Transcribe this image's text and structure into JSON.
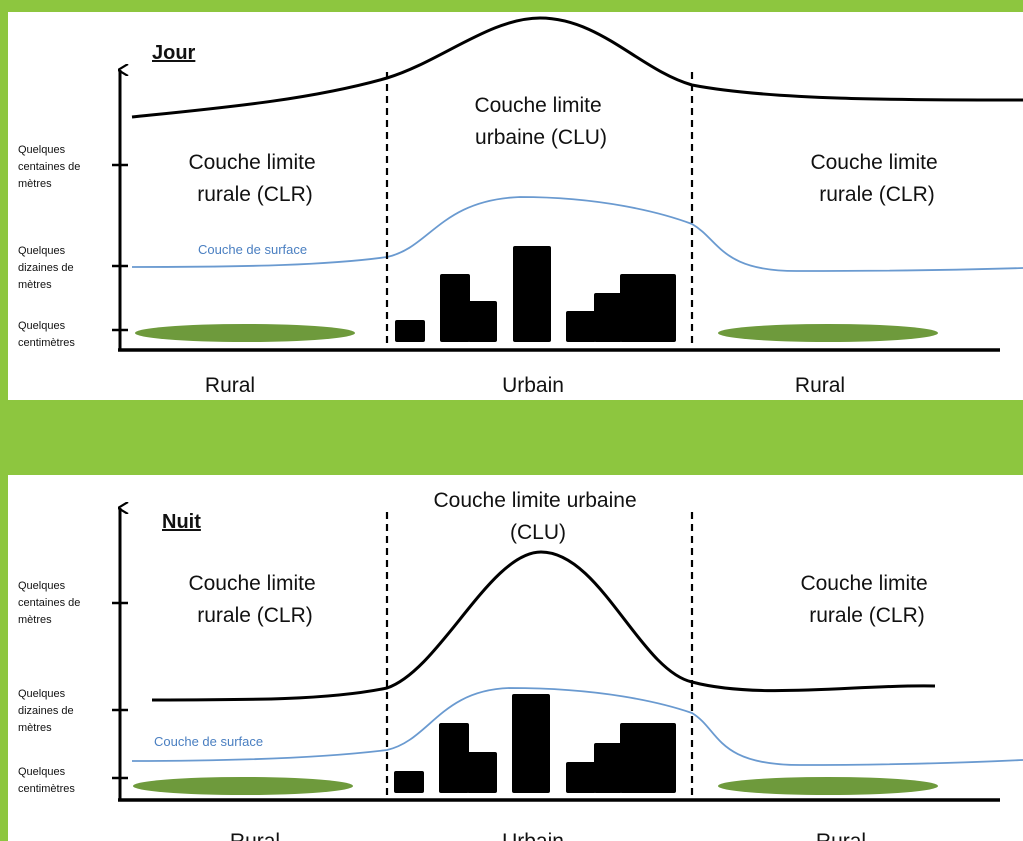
{
  "colors": {
    "background": "#8dc63f",
    "panel": "#ffffff",
    "boundary_layer_line": "#000000",
    "surface_layer_line": "#6a9ad0",
    "surface_label": "#4a7fc1",
    "vegetation": "#6e9a3c",
    "buildings": "#000000"
  },
  "panels": [
    {
      "title": "Jour",
      "y_axis_labels": [
        [
          "Quelques",
          "centaines de",
          "mètres"
        ],
        [
          "Quelques",
          "dizaines de",
          "mètres"
        ],
        [
          "Quelques",
          "centimètres"
        ]
      ],
      "left_zone_label": [
        "Couche limite",
        "rurale (CLR)"
      ],
      "center_zone_label": [
        "Couche limite",
        "urbaine (CLU)"
      ],
      "right_zone_label": [
        "Couche limite",
        "rurale (CLR)"
      ],
      "surface_layer_label": "Couche de surface",
      "regions": [
        "Rural",
        "Urbain",
        "Rural"
      ]
    },
    {
      "title": "Nuit",
      "y_axis_labels": [
        [
          "Quelques",
          "centaines de",
          "mètres"
        ],
        [
          "Quelques",
          "dizaines de",
          "mètres"
        ],
        [
          "Quelques",
          "centimètres"
        ]
      ],
      "left_zone_label": [
        "Couche limite",
        "rurale (CLR)"
      ],
      "center_zone_label": [
        "Couche limite urbaine",
        "(CLU)"
      ],
      "right_zone_label": [
        "Couche limite",
        "rurale (CLR)"
      ],
      "surface_layer_label": "Couche de surface",
      "regions": [
        "Rural",
        "Urbain",
        "Rural"
      ]
    }
  ]
}
